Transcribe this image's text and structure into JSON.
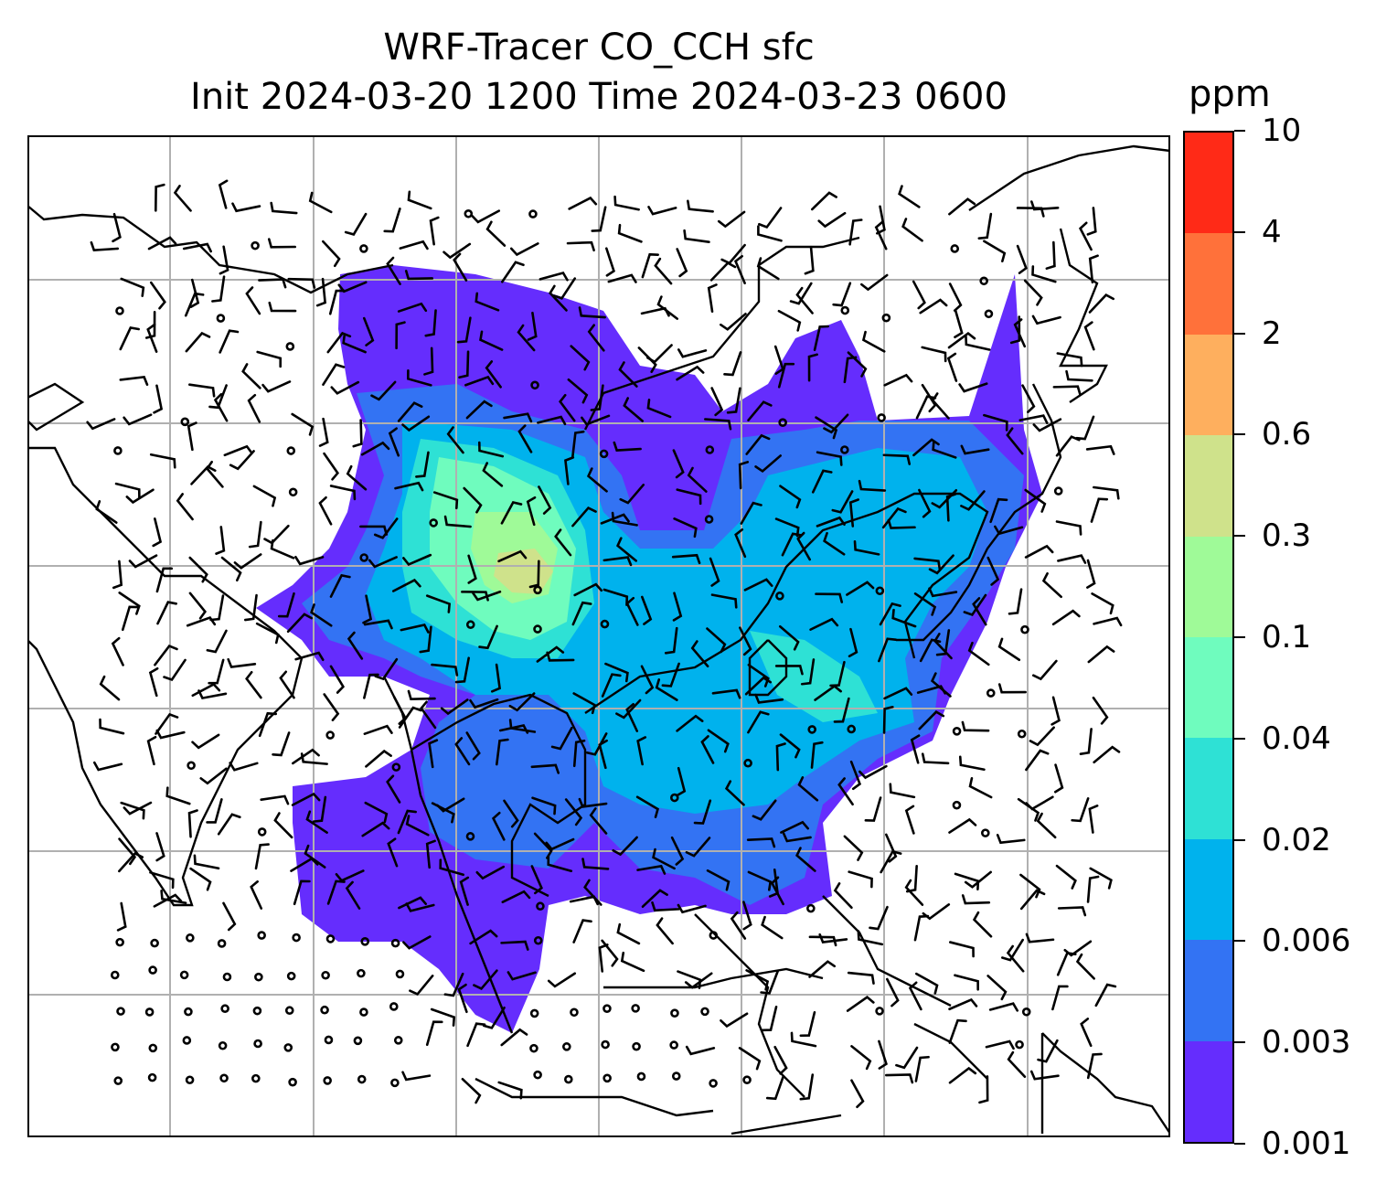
{
  "title_line1": "WRF-Tracer CO_CCH sfc",
  "title_line2": "Init 2024-03-20 1200 Time 2024-03-23 0600",
  "colorbar": {
    "unit": "ppm",
    "levels": [
      "0.001",
      "0.003",
      "0.006",
      "0.02",
      "0.04",
      "0.1",
      "0.3",
      "0.6",
      "2",
      "4",
      "10"
    ],
    "colors": [
      "#652dfd",
      "#3373f3",
      "#00b2ed",
      "#2ee1d5",
      "#6ffcbe",
      "#9ffa98",
      "#cfe28b",
      "#feaf5e",
      "#ff713a",
      "#ff2a17"
    ]
  },
  "map": {
    "field": "CO_CCH sfc",
    "overlays": [
      "coastlines",
      "country-borders",
      "lat-lon-gridlines",
      "wind-barbs"
    ]
  }
}
